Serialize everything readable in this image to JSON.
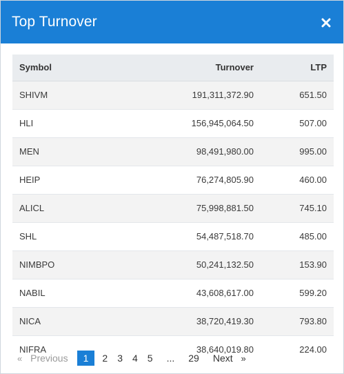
{
  "modal": {
    "title": "Top Turnover",
    "close_icon": "close-icon",
    "accent_color": "#1a7fd6"
  },
  "table": {
    "headers": {
      "symbol": "Symbol",
      "turnover": "Turnover",
      "ltp": "LTP"
    },
    "rows": [
      {
        "symbol": "SHIVM",
        "turnover": "191,311,372.90",
        "ltp": "651.50"
      },
      {
        "symbol": "HLI",
        "turnover": "156,945,064.50",
        "ltp": "507.00"
      },
      {
        "symbol": "MEN",
        "turnover": "98,491,980.00",
        "ltp": "995.00"
      },
      {
        "symbol": "HEIP",
        "turnover": "76,274,805.90",
        "ltp": "460.00"
      },
      {
        "symbol": "ALICL",
        "turnover": "75,998,881.50",
        "ltp": "745.10"
      },
      {
        "symbol": "SHL",
        "turnover": "54,487,518.70",
        "ltp": "485.00"
      },
      {
        "symbol": "NIMBPO",
        "turnover": "50,241,132.50",
        "ltp": "153.90"
      },
      {
        "symbol": "NABIL",
        "turnover": "43,608,617.00",
        "ltp": "599.20"
      },
      {
        "symbol": "NICA",
        "turnover": "38,720,419.30",
        "ltp": "793.80"
      },
      {
        "symbol": "NIFRA",
        "turnover": "38,640,019.80",
        "ltp": "224.00"
      }
    ]
  },
  "pagination": {
    "prev_arrow": "«",
    "prev_label": "Previous",
    "pages": [
      "1",
      "2",
      "3",
      "4",
      "5"
    ],
    "active_page": "1",
    "ellipsis": "...",
    "last_page": "29",
    "next_label": "Next",
    "next_arrow": "»"
  }
}
